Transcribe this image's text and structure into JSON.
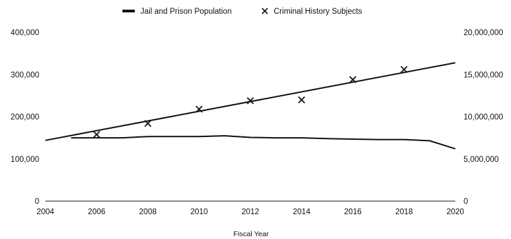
{
  "chart_data": {
    "type": "line",
    "title": "",
    "xlabel": "Fiscal Year",
    "ylabel_left": "",
    "ylabel_right": "",
    "x_ticks": [
      "2004",
      "2006",
      "2008",
      "2010",
      "2012",
      "2014",
      "2016",
      "2018",
      "2020"
    ],
    "xlim": [
      2004,
      2020
    ],
    "y_left_ticks": [
      "0",
      "100,000",
      "200,000",
      "300,000",
      "400,000"
    ],
    "ylim_left": [
      0,
      400000
    ],
    "y_right_ticks": [
      "0",
      "5,000,000",
      "10,000,000",
      "15,000,000",
      "20,000,000"
    ],
    "ylim_right": [
      0,
      20000000
    ],
    "grid": false,
    "legend_position": "top-center",
    "series": [
      {
        "name": "Jail and Prison Population",
        "axis": "left",
        "style": "line",
        "color": "#111111",
        "x": [
          2005,
          2006,
          2007,
          2008,
          2009,
          2010,
          2011,
          2012,
          2013,
          2014,
          2015,
          2016,
          2017,
          2018,
          2019,
          2020
        ],
        "values": [
          150000,
          150000,
          150000,
          153000,
          153000,
          153000,
          155000,
          151000,
          150000,
          150000,
          148000,
          147000,
          146000,
          146000,
          143000,
          124000
        ]
      },
      {
        "name": "Criminal History Subjects",
        "axis": "right",
        "style": "markers",
        "marker": "x",
        "color": "#111111",
        "x": [
          2006,
          2008,
          2010,
          2012,
          2014,
          2016,
          2018
        ],
        "values": [
          7900000,
          9200000,
          10900000,
          11900000,
          12000000,
          14400000,
          15600000
        ]
      },
      {
        "name": "",
        "axis": "right",
        "style": "line",
        "color": "#111111",
        "x": [
          2004,
          2020
        ],
        "values": [
          7200000,
          16400000
        ]
      }
    ]
  }
}
